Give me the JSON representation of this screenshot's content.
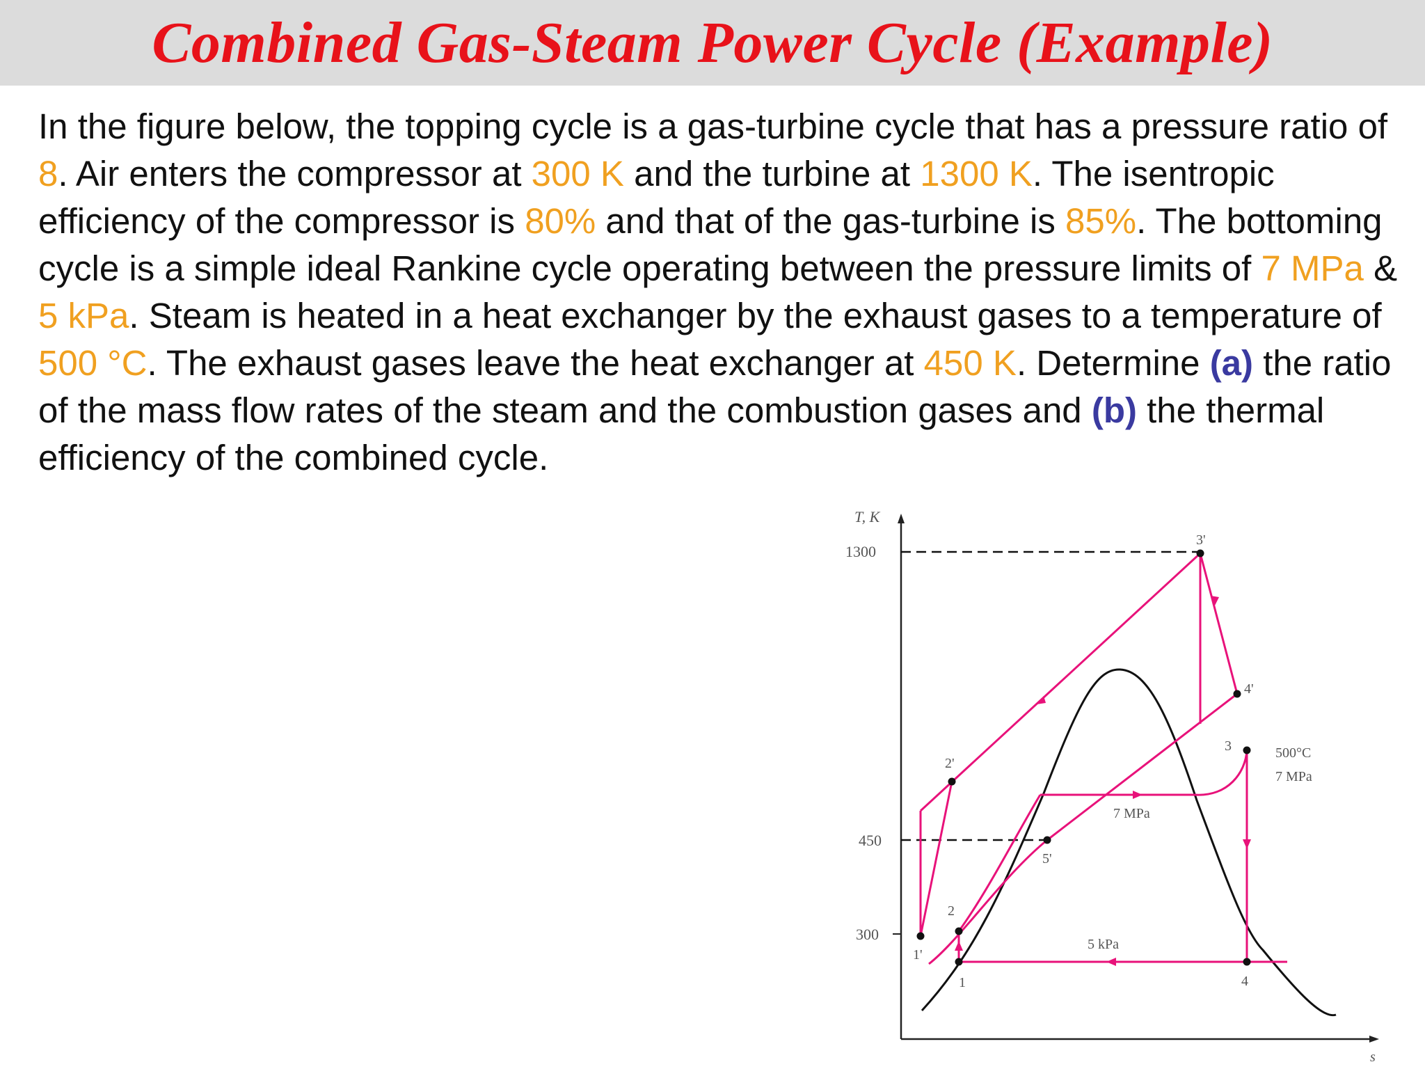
{
  "title": "Combined Gas-Steam Power Cycle (Example)",
  "problem": {
    "t1": "In the figure below, the topping cycle is a gas-turbine cycle that has a pressure ratio of ",
    "v_ratio": "8",
    "t2": ". Air enters the compressor at ",
    "v_tin": "300 K",
    "t3": " and the turbine at ",
    "v_tt": "1300 K",
    "t4": ". The isentropic efficiency of the compressor is ",
    "v_etac": "80%",
    "t5": " and that of the gas-turbine is ",
    "v_etat": "85%",
    "t6": ". The bottoming cycle is a simple ideal Rankine cycle operating between the pressure limits of ",
    "v_phigh": "7 MPa",
    "t7": " & ",
    "v_plow": "5 kPa",
    "t8": ". Steam is heated in a heat exchanger by the exhaust gases to a temperature of ",
    "v_tsteam": "500 °C",
    "t9": ". The exhaust gases leave the heat exchanger at ",
    "v_texh": "450 K",
    "t10": ". Determine ",
    "q_a": "(a)",
    "t11": " the ratio of the mass flow rates of the steam and the combustion gases and ",
    "q_b": "(b)",
    "t12": " the thermal efficiency of the combined cycle."
  },
  "diagram": {
    "y_axis_label": "T, K",
    "x_axis_label": "s",
    "y_ticks": [
      "1300",
      "450",
      "300"
    ],
    "state_labels": {
      "s1p": "1'",
      "s2p": "2'",
      "s3p": "3'",
      "s4p": "4'",
      "s5p": "5'",
      "s1": "1",
      "s2": "2",
      "s3": "3",
      "s4": "4"
    },
    "pressure_labels": {
      "high": "7 MPa",
      "low": "5 kPa"
    },
    "steam_state": [
      "500°C",
      "7 MPa"
    ],
    "colors": {
      "cycle": "#e8127a",
      "dome": "#111111",
      "axis": "#222222"
    }
  }
}
